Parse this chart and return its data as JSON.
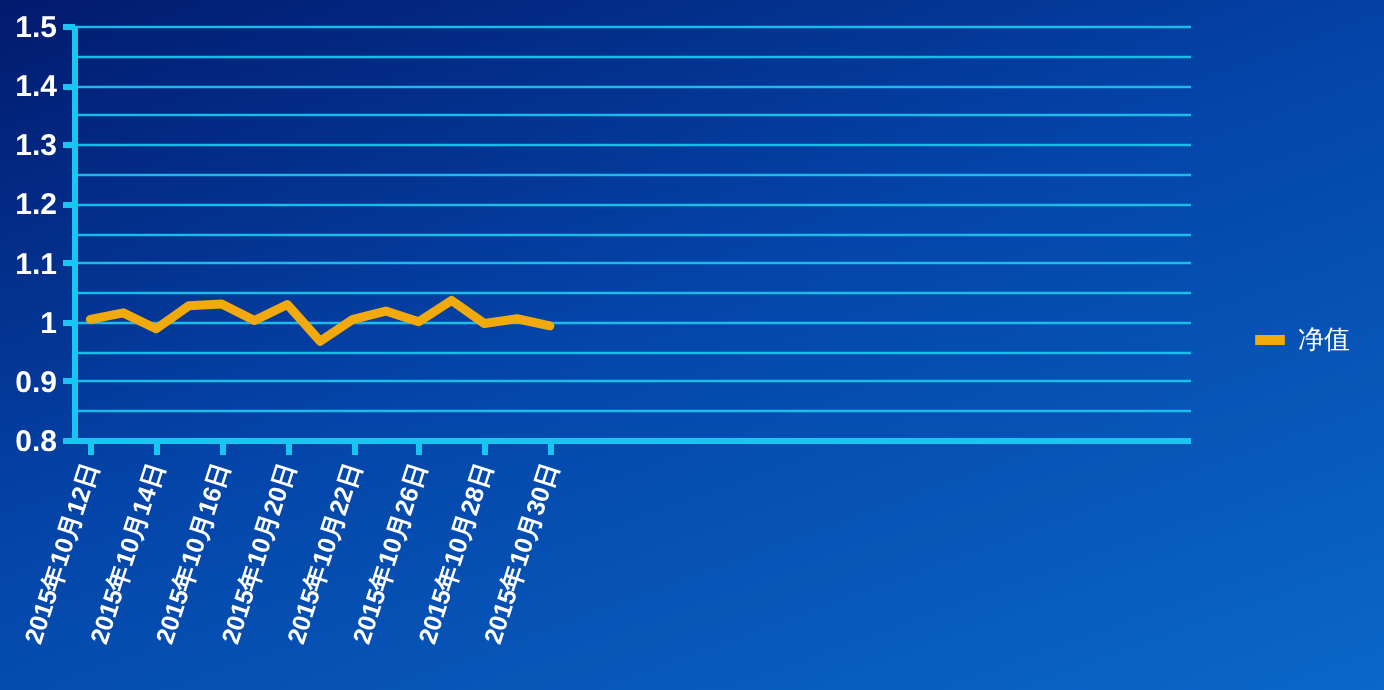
{
  "chart_data": {
    "type": "line",
    "categories": [
      "2015年10月12日",
      null,
      "2015年10月14日",
      null,
      "2015年10月16日",
      null,
      "2015年10月20日",
      null,
      "2015年10月22日",
      null,
      "2015年10月26日",
      null,
      "2015年10月28日",
      null,
      "2015年10月30日",
      null,
      null,
      null,
      null,
      null,
      null,
      null,
      null,
      null,
      null,
      null,
      null,
      null,
      null,
      null,
      null,
      null,
      null,
      null
    ],
    "series": [
      {
        "name": "净值",
        "color": "#f2a90c",
        "values": [
          1.004,
          1.015,
          0.988,
          1.027,
          1.03,
          1.002,
          1.029,
          0.967,
          1.004,
          1.018,
          1.0,
          1.036,
          0.997,
          1.005,
          0.993,
          null,
          null,
          null,
          null,
          null,
          null,
          null,
          null,
          null,
          null,
          null,
          null,
          null,
          null,
          null,
          null,
          null,
          null,
          null
        ]
      }
    ],
    "ylim": [
      0.8,
      1.5
    ],
    "yticks": [
      0.8,
      {
        "value": 0.9,
        "label": "0.9"
      },
      {
        "value": 1,
        "label": "1"
      },
      1.1,
      1.2,
      1.3,
      1.4,
      1.5
    ],
    "grid": "y",
    "legend": "right",
    "marker": "none",
    "line_style": "solid"
  }
}
